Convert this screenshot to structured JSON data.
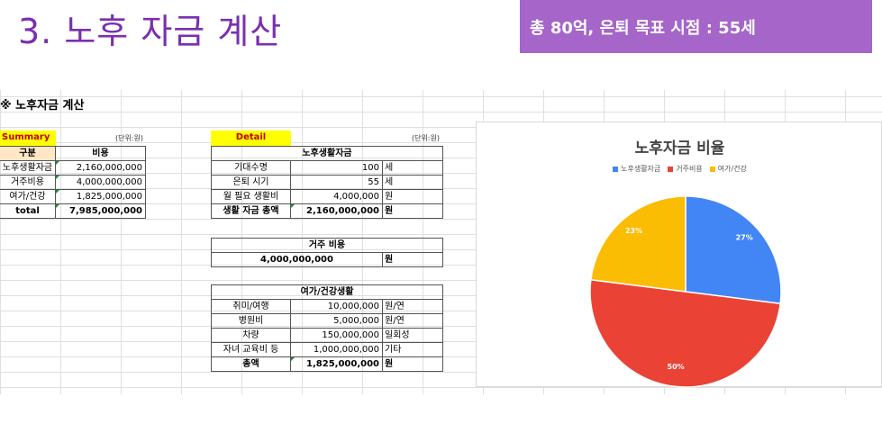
{
  "slide": {
    "title": "3. 노후 자금 계산",
    "target": "총 80억, 은퇴 목표 시점  : 55세"
  },
  "sheet": {
    "title": "※ 노후자금 계산",
    "summary": {
      "label": "Summary",
      "unit": "(단위:원)",
      "headers": [
        "구분",
        "비용"
      ],
      "rows": [
        {
          "name": "노후생활자금",
          "value": "2,160,000,000"
        },
        {
          "name": "거주비용",
          "value": "4,000,000,000"
        },
        {
          "name": "여가/건강",
          "value": "1,825,000,000"
        }
      ],
      "total_label": "total",
      "total_value": "7,985,000,000"
    },
    "detail": {
      "label": "Detail",
      "unit": "(단위:원)",
      "living": {
        "header": "노후생활자금",
        "rows": [
          {
            "name": "기대수명",
            "value": "100",
            "unit": "세"
          },
          {
            "name": "은퇴 시기",
            "value": "55",
            "unit": "세"
          },
          {
            "name": "월 필요 생활비",
            "value": "4,000,000",
            "unit": "원"
          }
        ],
        "total": {
          "name": "생활 자금 총액",
          "value": "2,160,000,000",
          "unit": "원"
        }
      },
      "housing": {
        "header": "거주 비용",
        "value": "4,000,000,000",
        "unit": "원"
      },
      "leisure": {
        "header": "여가/건강생활",
        "rows": [
          {
            "name": "취미/여행",
            "value": "10,000,000",
            "unit": "원/연"
          },
          {
            "name": "병원비",
            "value": "5,000,000",
            "unit": "원/연"
          },
          {
            "name": "차량",
            "value": "150,000,000",
            "unit": "일회성"
          },
          {
            "name": "자녀 교육비 등",
            "value": "1,000,000,000",
            "unit": "기타"
          }
        ],
        "total": {
          "name": "총액",
          "value": "1,825,000,000",
          "unit": "원"
        }
      }
    }
  },
  "chart_data": {
    "type": "pie",
    "title": "노후자금 비율",
    "categories": [
      "노후생활자금",
      "거주비용",
      "여가/건강"
    ],
    "values": [
      27,
      50,
      23
    ],
    "labels": [
      "27%",
      "50%",
      "23%"
    ],
    "colors": [
      "#4285f4",
      "#ea4335",
      "#fbbc04"
    ],
    "legend_position": "top"
  }
}
